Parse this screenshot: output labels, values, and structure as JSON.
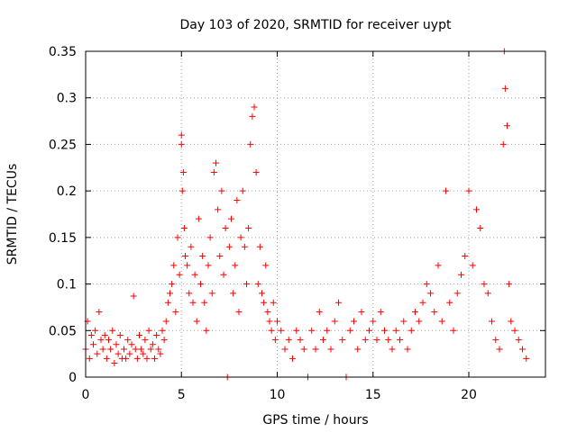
{
  "chart_data": {
    "type": "scatter",
    "title": "Day 103 of 2020, SRMTID for receiver uypt",
    "xlabel": "GPS time / hours",
    "ylabel": "SRMTID / TECUs",
    "xlim": [
      0,
      24
    ],
    "ylim": [
      0,
      0.35
    ],
    "grid": true,
    "marker": "+",
    "x_ticks": [
      0,
      5,
      10,
      15,
      20
    ],
    "y_ticks": [
      0,
      0.05,
      0.1,
      0.15,
      0.2,
      0.25,
      0.3,
      0.35
    ],
    "x_tick_labels": [
      "0",
      "5",
      "10",
      "15",
      "20"
    ],
    "y_tick_labels": [
      "0",
      "0.05",
      "0.1",
      "0.15",
      "0.2",
      "0.25",
      "0.3",
      "0.35"
    ],
    "series": [
      {
        "name": "SRMTID",
        "color": "#ff0000",
        "points": [
          [
            0.0,
            0.03
          ],
          [
            0.1,
            0.06
          ],
          [
            0.2,
            0.02
          ],
          [
            0.3,
            0.045
          ],
          [
            0.4,
            0.035
          ],
          [
            0.5,
            0.05
          ],
          [
            0.6,
            0.025
          ],
          [
            0.7,
            0.07
          ],
          [
            0.8,
            0.04
          ],
          [
            0.9,
            0.03
          ],
          [
            1.0,
            0.045
          ],
          [
            1.1,
            0.02
          ],
          [
            1.2,
            0.04
          ],
          [
            1.3,
            0.03
          ],
          [
            1.4,
            0.05
          ],
          [
            1.5,
            0.015
          ],
          [
            1.6,
            0.035
          ],
          [
            1.7,
            0.025
          ],
          [
            1.8,
            0.045
          ],
          [
            1.9,
            0.02
          ],
          [
            2.0,
            0.03
          ],
          [
            2.1,
            0.02
          ],
          [
            2.2,
            0.04
          ],
          [
            2.3,
            0.025
          ],
          [
            2.4,
            0.035
          ],
          [
            2.5,
            0.087
          ],
          [
            2.6,
            0.03
          ],
          [
            2.7,
            0.02
          ],
          [
            2.8,
            0.045
          ],
          [
            2.9,
            0.03
          ],
          [
            3.0,
            0.025
          ],
          [
            3.1,
            0.04
          ],
          [
            3.2,
            0.02
          ],
          [
            3.3,
            0.05
          ],
          [
            3.4,
            0.03
          ],
          [
            3.5,
            0.035
          ],
          [
            3.6,
            0.02
          ],
          [
            3.7,
            0.045
          ],
          [
            3.8,
            0.03
          ],
          [
            3.9,
            0.025
          ],
          [
            4.0,
            0.05
          ],
          [
            4.1,
            0.04
          ],
          [
            4.2,
            0.06
          ],
          [
            4.3,
            0.08
          ],
          [
            4.4,
            0.09
          ],
          [
            4.5,
            0.1
          ],
          [
            4.6,
            0.12
          ],
          [
            4.7,
            0.07
          ],
          [
            4.8,
            0.15
          ],
          [
            4.9,
            0.11
          ],
          [
            5.0,
            0.26
          ],
          [
            5.0,
            0.25
          ],
          [
            5.05,
            0.2
          ],
          [
            5.1,
            0.22
          ],
          [
            5.15,
            0.16
          ],
          [
            5.2,
            0.13
          ],
          [
            5.3,
            0.12
          ],
          [
            5.4,
            0.09
          ],
          [
            5.5,
            0.14
          ],
          [
            5.6,
            0.08
          ],
          [
            5.7,
            0.11
          ],
          [
            5.8,
            0.06
          ],
          [
            5.9,
            0.17
          ],
          [
            6.0,
            0.1
          ],
          [
            6.1,
            0.13
          ],
          [
            6.2,
            0.08
          ],
          [
            6.3,
            0.05
          ],
          [
            6.4,
            0.12
          ],
          [
            6.5,
            0.15
          ],
          [
            6.6,
            0.09
          ],
          [
            6.7,
            0.22
          ],
          [
            6.8,
            0.23
          ],
          [
            6.9,
            0.18
          ],
          [
            7.0,
            0.13
          ],
          [
            7.1,
            0.2
          ],
          [
            7.2,
            0.11
          ],
          [
            7.3,
            0.16
          ],
          [
            7.4,
            0.0
          ],
          [
            7.5,
            0.14
          ],
          [
            7.6,
            0.17
          ],
          [
            7.7,
            0.09
          ],
          [
            7.8,
            0.12
          ],
          [
            7.9,
            0.19
          ],
          [
            8.0,
            0.07
          ],
          [
            8.1,
            0.15
          ],
          [
            8.2,
            0.2
          ],
          [
            8.3,
            0.14
          ],
          [
            8.4,
            0.1
          ],
          [
            8.5,
            0.16
          ],
          [
            8.6,
            0.25
          ],
          [
            8.7,
            0.28
          ],
          [
            8.8,
            0.29
          ],
          [
            8.9,
            0.22
          ],
          [
            9.0,
            0.1
          ],
          [
            9.1,
            0.14
          ],
          [
            9.2,
            0.09
          ],
          [
            9.3,
            0.08
          ],
          [
            9.4,
            0.12
          ],
          [
            9.5,
            0.07
          ],
          [
            9.6,
            0.06
          ],
          [
            9.7,
            0.05
          ],
          [
            9.8,
            0.08
          ],
          [
            9.9,
            0.04
          ],
          [
            10.0,
            0.06
          ],
          [
            10.2,
            0.05
          ],
          [
            10.4,
            0.03
          ],
          [
            10.6,
            0.04
          ],
          [
            10.8,
            0.02
          ],
          [
            11.0,
            0.05
          ],
          [
            11.2,
            0.04
          ],
          [
            11.4,
            0.03
          ],
          [
            11.6,
            0.0
          ],
          [
            11.8,
            0.05
          ],
          [
            12.0,
            0.03
          ],
          [
            12.2,
            0.07
          ],
          [
            12.4,
            0.04
          ],
          [
            12.6,
            0.05
          ],
          [
            12.8,
            0.03
          ],
          [
            13.0,
            0.06
          ],
          [
            13.2,
            0.08
          ],
          [
            13.4,
            0.04
          ],
          [
            13.6,
            0.0
          ],
          [
            13.8,
            0.05
          ],
          [
            14.0,
            0.06
          ],
          [
            14.2,
            0.03
          ],
          [
            14.4,
            0.07
          ],
          [
            14.6,
            0.04
          ],
          [
            14.8,
            0.05
          ],
          [
            15.0,
            0.06
          ],
          [
            15.2,
            0.04
          ],
          [
            15.4,
            0.07
          ],
          [
            15.6,
            0.05
          ],
          [
            15.8,
            0.04
          ],
          [
            16.0,
            0.03
          ],
          [
            16.2,
            0.05
          ],
          [
            16.4,
            0.04
          ],
          [
            16.6,
            0.06
          ],
          [
            16.8,
            0.03
          ],
          [
            17.0,
            0.05
          ],
          [
            17.2,
            0.07
          ],
          [
            17.4,
            0.06
          ],
          [
            17.6,
            0.08
          ],
          [
            17.8,
            0.1
          ],
          [
            18.0,
            0.09
          ],
          [
            18.2,
            0.07
          ],
          [
            18.4,
            0.12
          ],
          [
            18.6,
            0.06
          ],
          [
            18.8,
            0.2
          ],
          [
            19.0,
            0.08
          ],
          [
            19.2,
            0.05
          ],
          [
            19.4,
            0.09
          ],
          [
            19.6,
            0.11
          ],
          [
            19.8,
            0.13
          ],
          [
            20.0,
            0.2
          ],
          [
            20.2,
            0.12
          ],
          [
            20.4,
            0.18
          ],
          [
            20.6,
            0.16
          ],
          [
            20.8,
            0.1
          ],
          [
            21.0,
            0.09
          ],
          [
            21.2,
            0.06
          ],
          [
            21.4,
            0.04
          ],
          [
            21.6,
            0.03
          ],
          [
            21.8,
            0.25
          ],
          [
            21.85,
            0.35
          ],
          [
            21.9,
            0.31
          ],
          [
            22.0,
            0.27
          ],
          [
            22.1,
            0.1
          ],
          [
            22.2,
            0.06
          ],
          [
            22.4,
            0.05
          ],
          [
            22.6,
            0.04
          ],
          [
            22.8,
            0.03
          ],
          [
            23.0,
            0.02
          ]
        ]
      }
    ]
  }
}
